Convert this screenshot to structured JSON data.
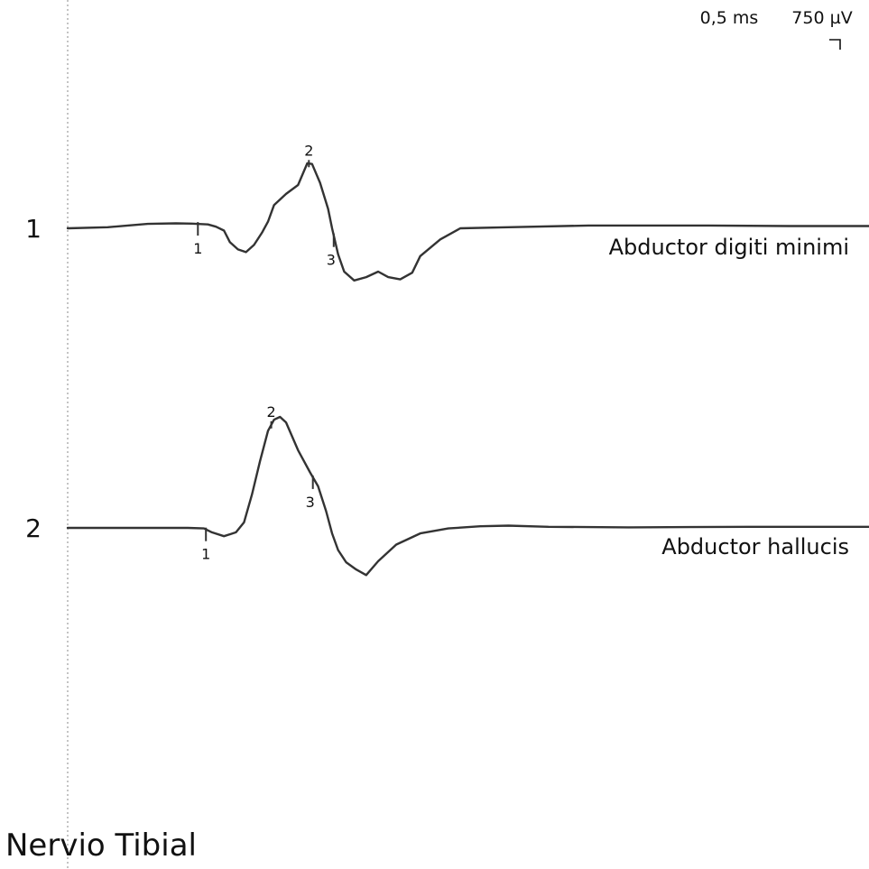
{
  "colors": {
    "trace": "#333333",
    "axis": "#888888",
    "text": "#111111"
  },
  "scale": {
    "time_label": "0,5 ms",
    "amplitude_label": "750 µV"
  },
  "title": "Nervio Tibial",
  "chart_data": {
    "type": "line",
    "title": "Nervio Tibial",
    "x_unit": "ms",
    "y_unit": "µV",
    "grid": false,
    "series": [
      {
        "trace_number": "1",
        "name": "Abductor digiti minimi",
        "points": [
          [
            0.0,
            0
          ],
          [
            1.0,
            20
          ],
          [
            1.5,
            50
          ],
          [
            2.0,
            80
          ],
          [
            2.7,
            90
          ],
          [
            3.1,
            85
          ],
          [
            3.5,
            70
          ],
          [
            3.7,
            30
          ],
          [
            3.9,
            -40
          ],
          [
            4.05,
            -250
          ],
          [
            4.25,
            -380
          ],
          [
            4.45,
            -430
          ],
          [
            4.65,
            -300
          ],
          [
            4.85,
            -80
          ],
          [
            5.0,
            120
          ],
          [
            5.15,
            420
          ],
          [
            5.45,
            620
          ],
          [
            5.75,
            780
          ],
          [
            5.98,
            1170
          ],
          [
            6.1,
            1160
          ],
          [
            6.3,
            820
          ],
          [
            6.5,
            350
          ],
          [
            6.6,
            0
          ],
          [
            6.75,
            -470
          ],
          [
            6.9,
            -780
          ],
          [
            7.15,
            -940
          ],
          [
            7.45,
            -880
          ],
          [
            7.75,
            -780
          ],
          [
            8.0,
            -880
          ],
          [
            8.3,
            -920
          ],
          [
            8.6,
            -800
          ],
          [
            8.8,
            -500
          ],
          [
            9.3,
            -200
          ],
          [
            9.8,
            0
          ],
          [
            11.0,
            20
          ],
          [
            13.0,
            50
          ],
          [
            16.0,
            50
          ],
          [
            18.0,
            40
          ],
          [
            20.0,
            40
          ]
        ],
        "markers": [
          {
            "id": "1",
            "x": 3.25
          },
          {
            "id": "2",
            "x": 6.02
          },
          {
            "id": "3",
            "x": 6.64
          }
        ]
      },
      {
        "trace_number": "2",
        "name": "Abductor hallucis",
        "points": [
          [
            0.0,
            0
          ],
          [
            2.0,
            0
          ],
          [
            3.0,
            0
          ],
          [
            3.4,
            -10
          ],
          [
            3.6,
            -80
          ],
          [
            3.9,
            -150
          ],
          [
            4.2,
            -80
          ],
          [
            4.4,
            100
          ],
          [
            4.6,
            600
          ],
          [
            4.8,
            1200
          ],
          [
            5.0,
            1750
          ],
          [
            5.15,
            1950
          ],
          [
            5.3,
            2000
          ],
          [
            5.45,
            1900
          ],
          [
            5.75,
            1400
          ],
          [
            6.05,
            1000
          ],
          [
            6.25,
            750
          ],
          [
            6.45,
            300
          ],
          [
            6.6,
            -100
          ],
          [
            6.75,
            -400
          ],
          [
            6.95,
            -620
          ],
          [
            7.2,
            -750
          ],
          [
            7.45,
            -850
          ],
          [
            7.75,
            -600
          ],
          [
            8.2,
            -300
          ],
          [
            8.8,
            -100
          ],
          [
            9.5,
            -10
          ],
          [
            10.3,
            30
          ],
          [
            11.0,
            40
          ],
          [
            12.0,
            20
          ],
          [
            14.0,
            10
          ],
          [
            17.0,
            20
          ],
          [
            20.0,
            20
          ]
        ],
        "markers": [
          {
            "id": "1",
            "x": 3.45
          },
          {
            "id": "2",
            "x": 5.08
          },
          {
            "id": "3",
            "x": 6.12
          }
        ]
      }
    ]
  }
}
